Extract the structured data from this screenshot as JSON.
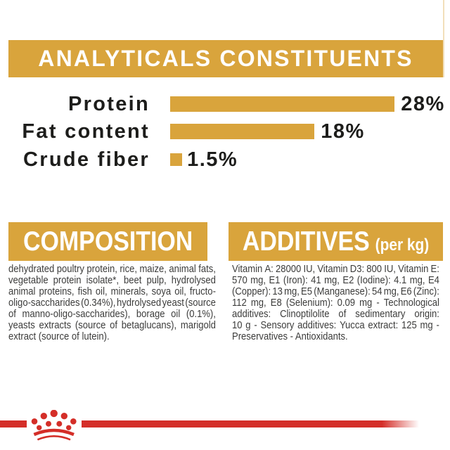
{
  "colors": {
    "background": "#FFFFFF",
    "gold": "#D9A43C",
    "red": "#D42E28",
    "heading_text": "#FFFFFF",
    "chart_text": "#1D1D1B",
    "body_text": "#3C3C3B"
  },
  "header": {
    "title": "ANALYTICALS CONSTITUENTS"
  },
  "chart_data": {
    "type": "bar",
    "orientation": "horizontal",
    "categories": [
      "Protein",
      "Fat content",
      "Crude fiber"
    ],
    "values": [
      28,
      18,
      1.5
    ],
    "value_labels": [
      "28%",
      "18%",
      "1.5%"
    ],
    "xlim": [
      0,
      28
    ],
    "bar_color": "#D9A43C",
    "title": "ANALYTICALS CONSTITUENTS",
    "legend": false,
    "grid": false
  },
  "composition": {
    "title": "COMPOSITION",
    "lines": [
      "dehydrated poultry protein, rice, maize, animal fats,",
      "vegetable protein isolate*, beet pulp, hydrolysed",
      "animal proteins, fish oil, minerals, soya oil, fructo-",
      "oligo-saccharides (0.34%), hydrolysed yeast (source",
      "of manno-oligo-saccharides), borage oil (0.1%),",
      "yeasts extracts (source of betaglucans), marigold",
      "extract (source of lutein)."
    ]
  },
  "additives": {
    "title": "ADDITIVES",
    "subtitle": "(per kg)",
    "lines": [
      "Vitamin A: 28000 IU, Vitamin D3: 800 IU, Vitamin E:",
      "570 mg, E1 (Iron): 41 mg, E2 (Iodine): 4.1 mg, E4",
      "(Copper): 13 mg, E5 (Manganese): 54 mg, E6 (Zinc):",
      "112 mg, E8 (Selenium): 0.09 mg - Technological",
      "additives: Clinoptilolite of sedimentary origin:",
      "10 g - Sensory additives: Yucca extract: 125 mg -",
      "Preservatives - Antioxidants."
    ]
  },
  "footer": {
    "logo": "royal-canin-crown"
  }
}
